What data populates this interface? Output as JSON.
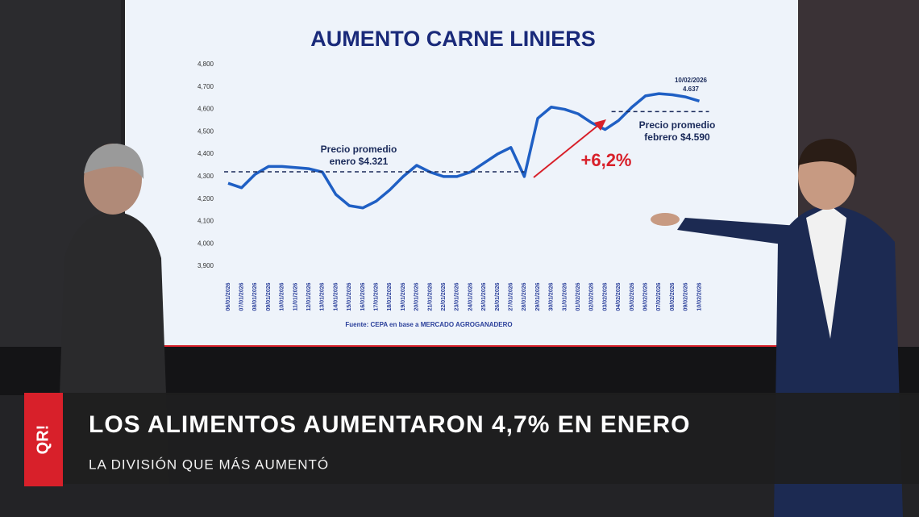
{
  "chart_data": {
    "type": "line",
    "title": "AUMENTO CARNE LINIERS",
    "categories": [
      "06/01/2026",
      "07/01/2026",
      "08/01/2026",
      "09/01/2026",
      "10/01/2026",
      "11/01/2026",
      "12/01/2026",
      "13/01/2026",
      "14/01/2026",
      "15/01/2026",
      "16/01/2026",
      "17/01/2026",
      "18/01/2026",
      "19/01/2026",
      "20/01/2026",
      "21/01/2026",
      "22/01/2026",
      "23/01/2026",
      "24/01/2026",
      "25/01/2026",
      "26/01/2026",
      "27/01/2026",
      "28/01/2026",
      "29/01/2026",
      "30/01/2026",
      "31/01/2026",
      "01/02/2026",
      "02/02/2026",
      "03/02/2026",
      "04/02/2026",
      "05/02/2026",
      "06/02/2026",
      "07/02/2026",
      "08/02/2026",
      "09/02/2026",
      "10/02/2026"
    ],
    "values": [
      4270,
      4250,
      4310,
      4345,
      4345,
      4340,
      4335,
      4320,
      4220,
      4170,
      4160,
      4190,
      4240,
      4300,
      4350,
      4320,
      4300,
      4300,
      4320,
      4360,
      4400,
      4430,
      4300,
      4560,
      4610,
      4600,
      4580,
      4540,
      4510,
      4550,
      4610,
      4660,
      4670,
      4665,
      4655,
      4637
    ],
    "color": "#1f5fc4",
    "ylim": [
      3900,
      4800
    ],
    "yticks": [
      {
        "value": 3900,
        "label": "3,900"
      },
      {
        "value": 4000,
        "label": "4,000"
      },
      {
        "value": 4100,
        "label": "4,100"
      },
      {
        "value": 4200,
        "label": "4,200"
      },
      {
        "value": 4300,
        "label": "4,300"
      },
      {
        "value": 4400,
        "label": "4,400"
      },
      {
        "value": 4500,
        "label": "4,500"
      },
      {
        "value": 4600,
        "label": "4,600"
      },
      {
        "value": 4700,
        "label": "4,700"
      },
      {
        "value": 4800,
        "label": "4,800"
      }
    ],
    "averages": [
      {
        "label_line1": "Precio promedio",
        "label_line2": "enero $4.321",
        "value": 4321
      },
      {
        "label_line1": "Precio promedio",
        "label_line2": "febrero $4.590",
        "value": 4590
      }
    ],
    "last_point_date": "10/02/2026",
    "last_point_label": "4.637",
    "change_label": "+6,2%",
    "source": "Fuente: CEPA en base a MERCADO AGROGANADERO"
  },
  "lower_third": {
    "logo": "QR!",
    "headline": "LOS ALIMENTOS AUMENTARON 4,7% EN ENERO",
    "subheadline": "LA DIVISIÓN QUE MÁS AUMENTÓ"
  }
}
